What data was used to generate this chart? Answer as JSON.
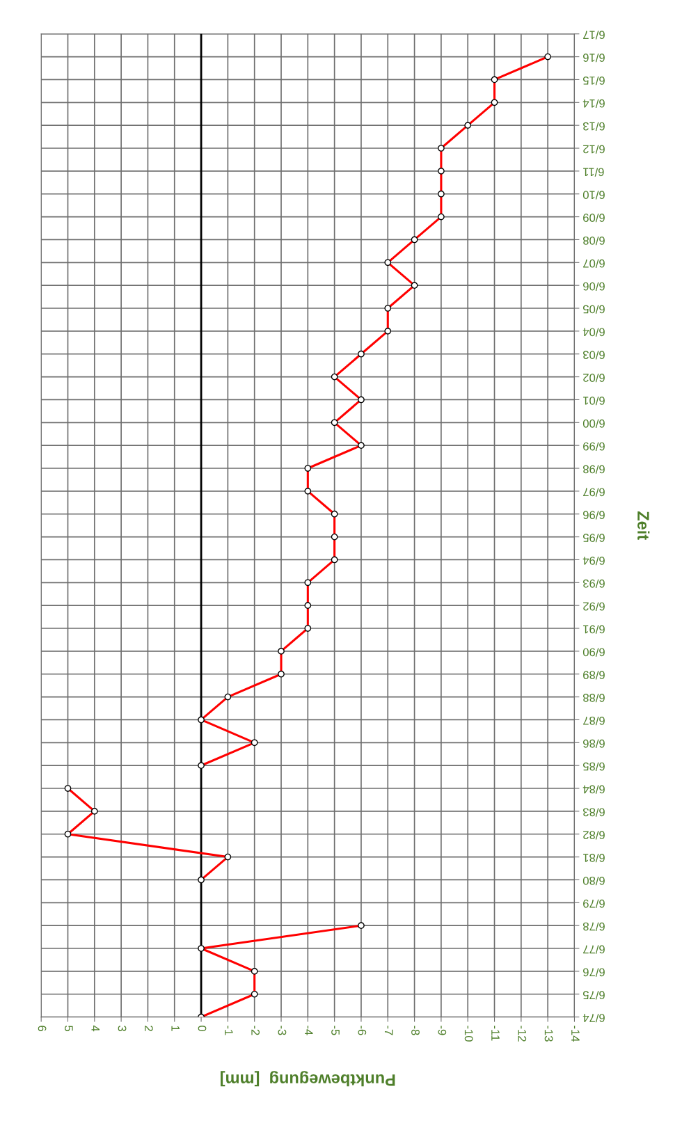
{
  "chart_data": {
    "type": "line",
    "orientation": "horizontal",
    "xlabel": "Punktbewegung  [mm]",
    "ylabel": "Zeit",
    "categories": [
      "6/17",
      "6/16",
      "6/15",
      "6/14",
      "6/13",
      "6/12",
      "6/11",
      "6/10",
      "6/09",
      "6/08",
      "6/07",
      "6/06",
      "6/05",
      "6/04",
      "6/03",
      "6/02",
      "6/01",
      "6/00",
      "6/99",
      "6/98",
      "6/97",
      "6/96",
      "6/95",
      "6/94",
      "6/93",
      "6/92",
      "6/91",
      "6/90",
      "6/89",
      "6/88",
      "6/87",
      "6/86",
      "6/85",
      "6/84",
      "6/83",
      "6/82",
      "6/81",
      "6/80",
      "6/79",
      "6/78",
      "6/77",
      "6/76",
      "6/75",
      "6/74"
    ],
    "series": [
      {
        "color": "#ff0000",
        "values": [
          null,
          null,
          null,
          null,
          null,
          null,
          null,
          null,
          null,
          null,
          null,
          null,
          null,
          null,
          null,
          null,
          null,
          null,
          null,
          null,
          null,
          null,
          null,
          null,
          null,
          null,
          null,
          null,
          null,
          null,
          null,
          null,
          null,
          null,
          null,
          null,
          null,
          null,
          null,
          -6,
          0,
          -2,
          -2,
          0
        ]
      },
      {
        "color": "#ff0000",
        "values": [
          null,
          null,
          null,
          null,
          null,
          null,
          null,
          null,
          null,
          null,
          null,
          null,
          null,
          null,
          null,
          null,
          null,
          null,
          null,
          null,
          null,
          null,
          null,
          null,
          null,
          null,
          null,
          null,
          null,
          null,
          null,
          null,
          null,
          5,
          4,
          5,
          -1,
          0,
          null,
          null,
          null,
          null,
          null,
          null
        ]
      },
      {
        "color": "#ff0000",
        "values": [
          null,
          -13,
          -11,
          -11,
          -10,
          -9,
          -9,
          -9,
          -9,
          -8,
          -7,
          -8,
          -7,
          -7,
          -6,
          -5,
          -6,
          -5,
          -6,
          -4,
          -4,
          -5,
          -5,
          -5,
          -4,
          -4,
          -4,
          -3,
          -3,
          -1,
          0,
          -2,
          0,
          null,
          null,
          null,
          null,
          null,
          null,
          null,
          null,
          null,
          null,
          null
        ]
      }
    ],
    "xlim": [
      6,
      -14
    ],
    "xticks": [
      6,
      5,
      4,
      3,
      2,
      1,
      0,
      -1,
      -2,
      -3,
      -4,
      -5,
      -6,
      -7,
      -8,
      -9,
      -10,
      -11,
      -12,
      -13,
      -14
    ],
    "ref_lines": [
      {
        "axis": "x",
        "value": 0,
        "color": "#000000"
      }
    ],
    "grid": true,
    "marker": "circle",
    "line_style": "solid"
  }
}
